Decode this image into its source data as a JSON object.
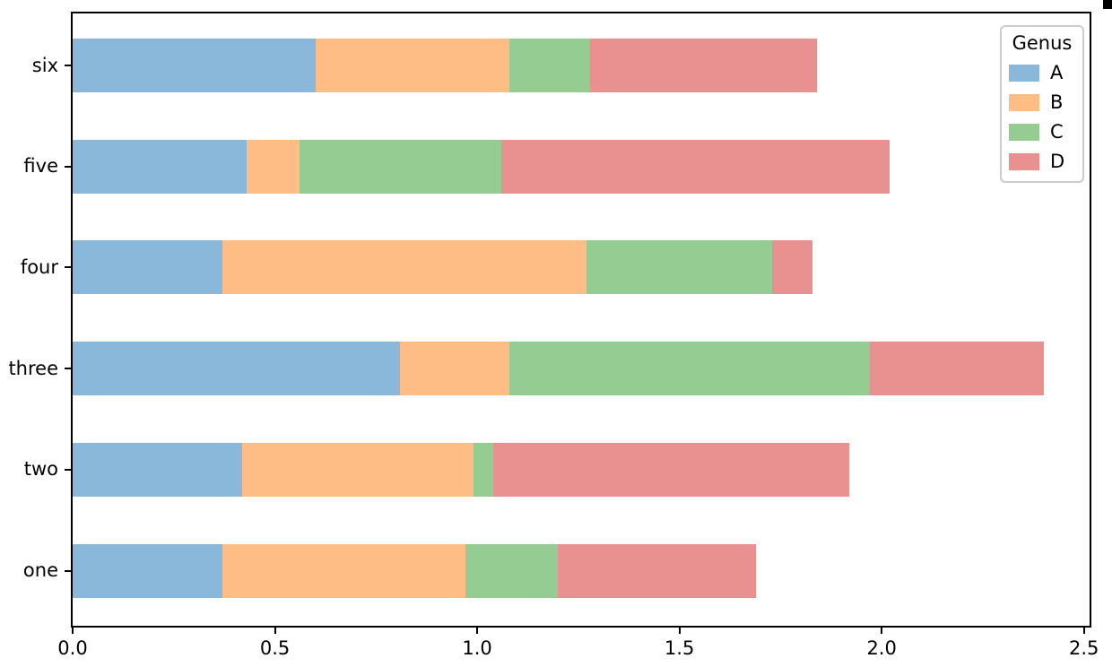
{
  "chart_data": {
    "type": "bar",
    "orientation": "horizontal",
    "stacked": true,
    "title": "",
    "xlabel": "",
    "ylabel": "",
    "legend_title": "Genus",
    "legend_position": "upper right",
    "grid": false,
    "categories": [
      "one",
      "two",
      "three",
      "four",
      "five",
      "six"
    ],
    "series": [
      {
        "name": "A",
        "color": "#8ab8da",
        "values": [
          0.37,
          0.42,
          0.81,
          0.37,
          0.43,
          0.6
        ]
      },
      {
        "name": "B",
        "color": "#fdbd84",
        "values": [
          0.6,
          0.57,
          0.27,
          0.9,
          0.13,
          0.48
        ]
      },
      {
        "name": "C",
        "color": "#95cc92",
        "values": [
          0.23,
          0.05,
          0.89,
          0.46,
          0.5,
          0.2
        ]
      },
      {
        "name": "D",
        "color": "#e89190",
        "values": [
          0.49,
          0.88,
          0.43,
          0.1,
          0.96,
          0.56
        ]
      }
    ],
    "x_ticks": [
      "0.0",
      "0.5",
      "1.0",
      "1.5",
      "2.0",
      "2.5"
    ],
    "xlim": [
      0,
      2.514
    ]
  }
}
